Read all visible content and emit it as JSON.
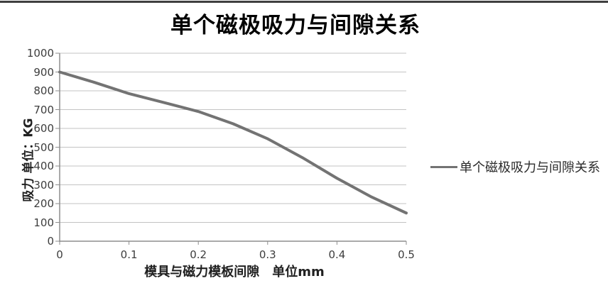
{
  "page": {
    "background": "#ffffff",
    "top_border_color": "#3f3f3f"
  },
  "chart_data": {
    "type": "line",
    "title": "单个磁极吸力与间隙关系",
    "xlabel": "模具与磁力模板间隙　单位mm",
    "ylabel": "吸力 单位：KG",
    "x": [
      0,
      0.05,
      0.1,
      0.15,
      0.2,
      0.25,
      0.3,
      0.35,
      0.4,
      0.45,
      0.5
    ],
    "series": [
      {
        "name": "单个磁极吸力与间隙关系",
        "values": [
          900,
          845,
          785,
          738,
          690,
          625,
          545,
          445,
          335,
          235,
          150
        ],
        "color": "#737373"
      }
    ],
    "xlim": [
      0,
      0.5
    ],
    "ylim": [
      0,
      1000
    ],
    "xticks": {
      "values": [
        0,
        0.1,
        0.2,
        0.3,
        0.4,
        0.5
      ],
      "labels": [
        "0",
        "0.1",
        "0.2",
        "0.3",
        "0.4",
        "0.5"
      ]
    },
    "yticks": {
      "values": [
        0,
        100,
        200,
        300,
        400,
        500,
        600,
        700,
        800,
        900,
        1000
      ],
      "labels": [
        "0",
        "100",
        "200",
        "300",
        "400",
        "500",
        "600",
        "700",
        "800",
        "900",
        "1000"
      ]
    },
    "grid": "horizontal gridlines on",
    "legend_position": "right",
    "legend": [
      {
        "label": "单个磁极吸力与间隙关系",
        "color": "#737373"
      }
    ],
    "colors": {
      "line": "#737373",
      "grid": "#c3c3c3",
      "axis": "#8e8e8e",
      "tick_text": "#3d3d3d"
    }
  }
}
